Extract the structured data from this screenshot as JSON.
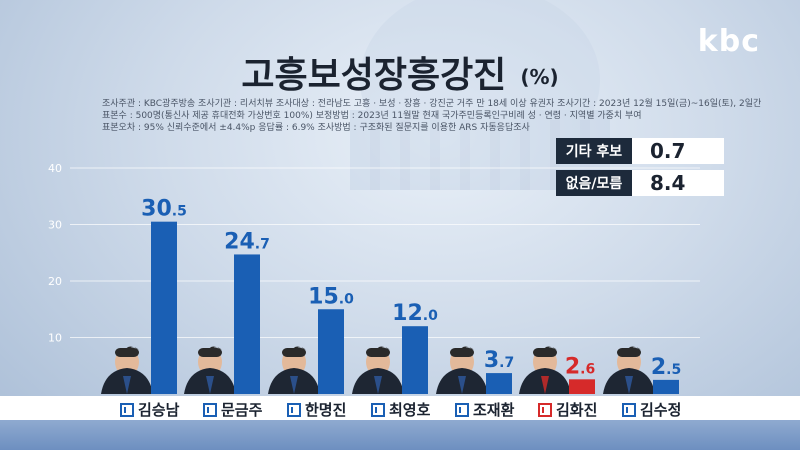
{
  "brand": "kbc",
  "header": {
    "title": "고흥보성장흥강진",
    "unit": "(%)",
    "meta_lines": [
      "조사주관 : KBC광주방송   조사기관 : 리서치뷰   조사대상 : 전라남도 고흥 · 보성 · 장흥 · 강진군 거주 만 18세 이상 유권자   조사기간 : 2023년 12월 15일(금)~16일(토), 2일간",
      "표본수 : 500명(통신사 제공 휴대전화 가상번호 100%)   보정방법 : 2023년 11월말 현재 국가주민등록인구비례 성 · 연령 · 지역별 가중치 부여",
      "표본오차 : 95% 신뢰수준에서 ±4.4%p   응답률 : 6.9%   조사방법 : 구조화된 질문지를 이용한 ARS 자동응답조사"
    ]
  },
  "side_table": [
    {
      "label": "기타 후보",
      "value": "0.7"
    },
    {
      "label": "없음/모름",
      "value": "8.4"
    }
  ],
  "colors": {
    "democratic": "#1a5fb4",
    "ppp": "#d62a2a",
    "text_dark": "#1b2330"
  },
  "chart_data": {
    "type": "bar",
    "categories": [
      "김승남",
      "문금주",
      "한명진",
      "최영호",
      "조재환",
      "김화진",
      "김수정"
    ],
    "values": [
      30.5,
      24.7,
      15.0,
      12.0,
      3.7,
      2.6,
      2.5
    ],
    "value_labels": [
      "30.5",
      "24.7",
      "15.0",
      "12.0",
      "3.7",
      "2.6",
      "2.5"
    ],
    "party_colors": [
      "#1a5fb4",
      "#1a5fb4",
      "#1a5fb4",
      "#1a5fb4",
      "#1a5fb4",
      "#d62a2a",
      "#1a5fb4"
    ],
    "ylim": [
      0,
      40
    ],
    "yticks": [
      10,
      20,
      30,
      40
    ],
    "title": "고흥보성장흥강진",
    "xlabel": "",
    "ylabel": ""
  }
}
